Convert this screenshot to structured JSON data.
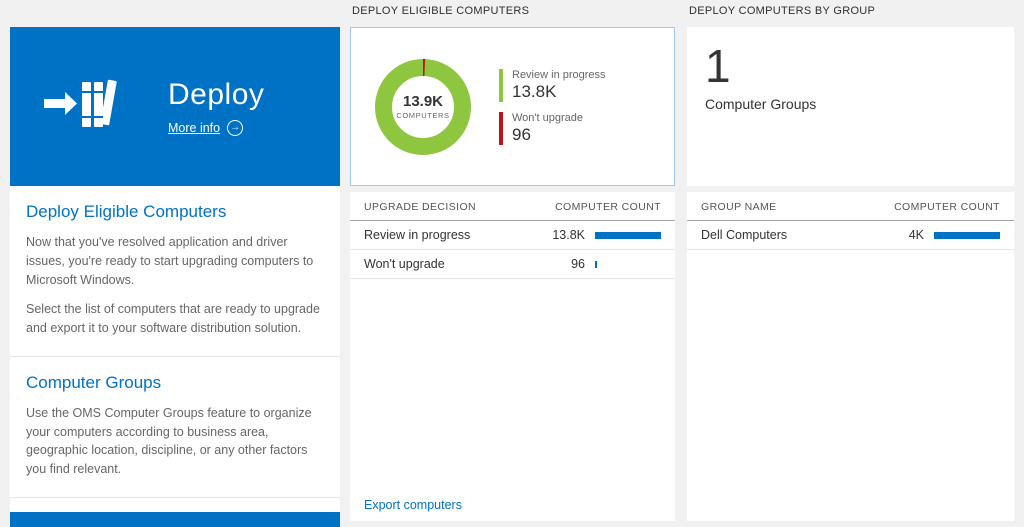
{
  "colors": {
    "accent_blue": "#0072c6",
    "donut_green": "#8ec63f",
    "legend_red": "#ba1419",
    "bar_blue": "#0072c6"
  },
  "left_panel": {
    "tile": {
      "title": "Deploy",
      "more_info_label": "More info"
    },
    "sections": [
      {
        "heading": "Deploy Eligible Computers",
        "paragraph1": "Now that you've resolved application and driver issues, you're ready to start upgrading computers to Microsoft Windows.",
        "paragraph2": "Select the list of computers that are ready to upgrade and export it to your software distribution solution."
      },
      {
        "heading": "Computer Groups",
        "paragraph1": "Use the OMS Computer Groups feature to organize your computers according to business area, geographic location, discipline, or any other factors you find relevant."
      }
    ]
  },
  "middle_panel": {
    "header": "DEPLOY ELIGIBLE COMPUTERS",
    "donut": {
      "center_value": "13.9K",
      "center_label": "COMPUTERS",
      "legend": [
        {
          "label": "Review in progress",
          "value": "13.8K",
          "color": "#8ec63f"
        },
        {
          "label": "Won't upgrade",
          "value": "96",
          "color": "#ba1419"
        }
      ]
    },
    "table": {
      "col1": "UPGRADE DECISION",
      "col2": "COMPUTER COUNT",
      "rows": [
        {
          "label": "Review in progress",
          "value": "13.8K",
          "bar_pct": 100
        },
        {
          "label": "Won't upgrade",
          "value": "96",
          "bar_pct": 3
        }
      ]
    },
    "export_label": "Export computers"
  },
  "right_panel": {
    "header": "DEPLOY COMPUTERS BY GROUP",
    "tile": {
      "count": "1",
      "label": "Computer Groups"
    },
    "table": {
      "col1": "GROUP NAME",
      "col2": "COMPUTER COUNT",
      "rows": [
        {
          "label": "Dell Computers",
          "value": "4K",
          "bar_pct": 100
        }
      ]
    }
  }
}
